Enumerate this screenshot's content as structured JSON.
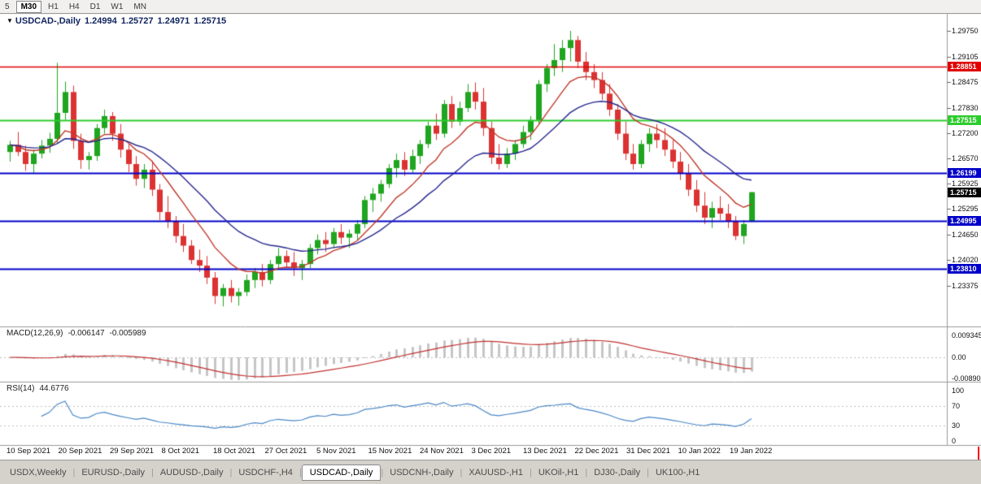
{
  "toolbar": {
    "buttons": [
      {
        "label": "5",
        "active": false
      },
      {
        "label": "M30",
        "active": true
      },
      {
        "label": "H1",
        "active": false
      },
      {
        "label": "H4",
        "active": false
      },
      {
        "label": "D1",
        "active": false
      },
      {
        "label": "W1",
        "active": false
      },
      {
        "label": "MN",
        "active": false
      }
    ]
  },
  "icons": {
    "collapse": "▼"
  },
  "chart_data": {
    "type": "candlestick",
    "title": {
      "symbol": "USDCAD-,Daily",
      "open": "1.24994",
      "high": "1.25727",
      "low": "1.24971",
      "close": "1.25715"
    },
    "price_axis_labels": [
      "1.29750",
      "1.29105",
      "1.28475",
      "1.27830",
      "1.27200",
      "1.26570",
      "1.25925",
      "1.25295",
      "1.24650",
      "1.24020",
      "1.23375"
    ],
    "date_labels": [
      "10 Sep 2021",
      "20 Sep 2021",
      "29 Sep 2021",
      "8 Oct 2021",
      "18 Oct 2021",
      "27 Oct 2021",
      "5 Nov 2021",
      "15 Nov 2021",
      "24 Nov 2021",
      "3 Dec 2021",
      "13 Dec 2021",
      "22 Dec 2021",
      "31 Dec 2021",
      "10 Jan 2022",
      "19 Jan 2022"
    ],
    "hlines": [
      {
        "price": 1.28851,
        "label": "1.28851",
        "color": "#e00000",
        "width": 1.5
      },
      {
        "price": 1.27515,
        "label": "1.27515",
        "color": "#2ecc2e",
        "width": 2
      },
      {
        "price": 1.26199,
        "label": "1.26199",
        "color": "#0000c8",
        "width": 2
      },
      {
        "price": 1.24995,
        "label": "1.24995",
        "color": "#0000c8",
        "width": 2
      },
      {
        "price": 1.2381,
        "label": "1.23810",
        "color": "#0000c8",
        "width": 2
      }
    ],
    "current_price": {
      "value": 1.25715,
      "label": "1.25715",
      "color": "#000000"
    },
    "moving_averages": [
      {
        "period": 9,
        "color": "#c0392b"
      },
      {
        "period": 20,
        "color": "#27278f"
      }
    ],
    "indicators": {
      "macd": {
        "label": "MACD(12,26,9)",
        "params": [
          12,
          26,
          9
        ],
        "values": [
          "-0.006147",
          "-0.005989"
        ],
        "axis": [
          "0.009345",
          "0.00",
          "-0.00890"
        ]
      },
      "rsi": {
        "label": "RSI(14)",
        "period": 14,
        "value": "44.6776",
        "axis": [
          "100",
          "70",
          "30",
          "0"
        ],
        "levels": [
          70,
          30
        ]
      }
    },
    "colors": {
      "bull": "#1fa51f",
      "bear": "#dc3232",
      "macd_hist": "#c6c6c6",
      "macd_signal": "#c03030",
      "rsi_line": "#4a87c7"
    },
    "candles": [
      [
        1.2672,
        1.27,
        1.2648,
        1.269
      ],
      [
        1.269,
        1.2722,
        1.2662,
        1.2672
      ],
      [
        1.2672,
        1.2688,
        1.2625,
        1.2642
      ],
      [
        1.2642,
        1.2678,
        1.262,
        1.2668
      ],
      [
        1.2668,
        1.2702,
        1.2656,
        1.2688
      ],
      [
        1.2688,
        1.272,
        1.267,
        1.2705
      ],
      [
        1.2705,
        1.2895,
        1.2695,
        1.277
      ],
      [
        1.277,
        1.2848,
        1.2752,
        1.2822
      ],
      [
        1.2822,
        1.2838,
        1.268,
        1.27
      ],
      [
        1.27,
        1.2718,
        1.263,
        1.2652
      ],
      [
        1.2652,
        1.2672,
        1.2628,
        1.2662
      ],
      [
        1.2662,
        1.2742,
        1.265,
        1.2732
      ],
      [
        1.2732,
        1.2778,
        1.2718,
        1.2762
      ],
      [
        1.2762,
        1.2772,
        1.27,
        1.2718
      ],
      [
        1.2718,
        1.2742,
        1.2658,
        1.2678
      ],
      [
        1.2678,
        1.2692,
        1.2622,
        1.2642
      ],
      [
        1.2642,
        1.2662,
        1.2588,
        1.2605
      ],
      [
        1.2605,
        1.2642,
        1.2582,
        1.2628
      ],
      [
        1.2628,
        1.265,
        1.2562,
        1.2578
      ],
      [
        1.2578,
        1.2592,
        1.2502,
        1.2522
      ],
      [
        1.2522,
        1.2562,
        1.2482,
        1.2498
      ],
      [
        1.2498,
        1.2512,
        1.2445,
        1.2462
      ],
      [
        1.2462,
        1.2492,
        1.2422,
        1.2438
      ],
      [
        1.2438,
        1.2452,
        1.2392,
        1.2402
      ],
      [
        1.2402,
        1.2428,
        1.2372,
        1.2388
      ],
      [
        1.2388,
        1.2412,
        1.2342,
        1.2358
      ],
      [
        1.2358,
        1.2372,
        1.2292,
        1.2312
      ],
      [
        1.2312,
        1.2342,
        1.2286,
        1.2332
      ],
      [
        1.2332,
        1.2352,
        1.2296,
        1.2312
      ],
      [
        1.2312,
        1.2332,
        1.2288,
        1.2322
      ],
      [
        1.2322,
        1.2366,
        1.2312,
        1.2352
      ],
      [
        1.2352,
        1.2382,
        1.2332,
        1.2372
      ],
      [
        1.2372,
        1.2392,
        1.2336,
        1.2352
      ],
      [
        1.2352,
        1.2402,
        1.2342,
        1.2392
      ],
      [
        1.2392,
        1.2432,
        1.2382,
        1.2412
      ],
      [
        1.2412,
        1.2426,
        1.2382,
        1.2396
      ],
      [
        1.2396,
        1.2422,
        1.2362,
        1.2382
      ],
      [
        1.2382,
        1.2402,
        1.2352,
        1.2392
      ],
      [
        1.2392,
        1.2442,
        1.2382,
        1.2432
      ],
      [
        1.2432,
        1.2466,
        1.2416,
        1.2452
      ],
      [
        1.2452,
        1.2472,
        1.2422,
        1.2442
      ],
      [
        1.2442,
        1.2482,
        1.2432,
        1.2472
      ],
      [
        1.2472,
        1.2492,
        1.2442,
        1.2458
      ],
      [
        1.2458,
        1.2478,
        1.2432,
        1.2468
      ],
      [
        1.2468,
        1.2502,
        1.2452,
        1.2492
      ],
      [
        1.2492,
        1.2562,
        1.2482,
        1.2552
      ],
      [
        1.2552,
        1.2582,
        1.2522,
        1.2568
      ],
      [
        1.2568,
        1.2602,
        1.2548,
        1.2592
      ],
      [
        1.2592,
        1.2642,
        1.2582,
        1.2632
      ],
      [
        1.2632,
        1.2668,
        1.2608,
        1.2652
      ],
      [
        1.2652,
        1.2672,
        1.2612,
        1.2628
      ],
      [
        1.2628,
        1.2678,
        1.2618,
        1.2662
      ],
      [
        1.2662,
        1.2702,
        1.2642,
        1.2692
      ],
      [
        1.2692,
        1.2748,
        1.2682,
        1.2738
      ],
      [
        1.2738,
        1.2768,
        1.2702,
        1.2718
      ],
      [
        1.2718,
        1.2802,
        1.2708,
        1.2792
      ],
      [
        1.2792,
        1.2812,
        1.2732,
        1.2748
      ],
      [
        1.2748,
        1.2798,
        1.2738,
        1.2782
      ],
      [
        1.2782,
        1.2842,
        1.2772,
        1.2822
      ],
      [
        1.2822,
        1.2846,
        1.2778,
        1.2798
      ],
      [
        1.2798,
        1.2832,
        1.2712,
        1.2732
      ],
      [
        1.2732,
        1.2748,
        1.2642,
        1.2658
      ],
      [
        1.2658,
        1.2692,
        1.2628,
        1.2642
      ],
      [
        1.2642,
        1.2682,
        1.2632,
        1.2668
      ],
      [
        1.2668,
        1.2702,
        1.2652,
        1.2692
      ],
      [
        1.2692,
        1.2738,
        1.2682,
        1.2722
      ],
      [
        1.2722,
        1.2762,
        1.2702,
        1.2752
      ],
      [
        1.2752,
        1.2852,
        1.2742,
        1.2842
      ],
      [
        1.2842,
        1.2892,
        1.2822,
        1.2882
      ],
      [
        1.2882,
        1.2942,
        1.2862,
        1.2902
      ],
      [
        1.2902,
        1.2952,
        1.2872,
        1.2932
      ],
      [
        1.2932,
        1.2975,
        1.2898,
        1.2952
      ],
      [
        1.2952,
        1.2962,
        1.2882,
        1.2898
      ],
      [
        1.2898,
        1.2922,
        1.2852,
        1.2872
      ],
      [
        1.2872,
        1.2892,
        1.2832,
        1.2852
      ],
      [
        1.2852,
        1.2872,
        1.2802,
        1.2818
      ],
      [
        1.2818,
        1.2842,
        1.2762,
        1.2778
      ],
      [
        1.2778,
        1.2792,
        1.2702,
        1.2718
      ],
      [
        1.2718,
        1.2748,
        1.2652,
        1.2668
      ],
      [
        1.2668,
        1.2692,
        1.2628,
        1.2642
      ],
      [
        1.2642,
        1.2702,
        1.2632,
        1.2692
      ],
      [
        1.2692,
        1.2732,
        1.2672,
        1.2718
      ],
      [
        1.2718,
        1.2742,
        1.2682,
        1.2702
      ],
      [
        1.2702,
        1.2732,
        1.2662,
        1.2678
      ],
      [
        1.2678,
        1.2702,
        1.2632,
        1.2648
      ],
      [
        1.2648,
        1.2672,
        1.2602,
        1.2618
      ],
      [
        1.2618,
        1.2642,
        1.2562,
        1.2578
      ],
      [
        1.2578,
        1.2602,
        1.2522,
        1.2538
      ],
      [
        1.2538,
        1.2572,
        1.2492,
        1.2508
      ],
      [
        1.2508,
        1.2548,
        1.2482,
        1.2532
      ],
      [
        1.2532,
        1.2562,
        1.2502,
        1.2518
      ],
      [
        1.2518,
        1.2542,
        1.2482,
        1.2498
      ],
      [
        1.2498,
        1.2512,
        1.2452,
        1.2462
      ],
      [
        1.2462,
        1.2502,
        1.2442,
        1.2492
      ],
      [
        1.24994,
        1.25727,
        1.24971,
        1.25715
      ]
    ]
  },
  "tabs": [
    {
      "label": "USDX,Weekly",
      "active": false
    },
    {
      "label": "EURUSD-,Daily",
      "active": false
    },
    {
      "label": "AUDUSD-,Daily",
      "active": false
    },
    {
      "label": "USDCHF-,H4",
      "active": false
    },
    {
      "label": "USDCAD-,Daily",
      "active": true
    },
    {
      "label": "USDCNH-,Daily",
      "active": false
    },
    {
      "label": "XAUUSD-,H1",
      "active": false
    },
    {
      "label": "UKOil-,H1",
      "active": false
    },
    {
      "label": "DJ30-,Daily",
      "active": false
    },
    {
      "label": "UK100-,H1",
      "active": false
    }
  ]
}
